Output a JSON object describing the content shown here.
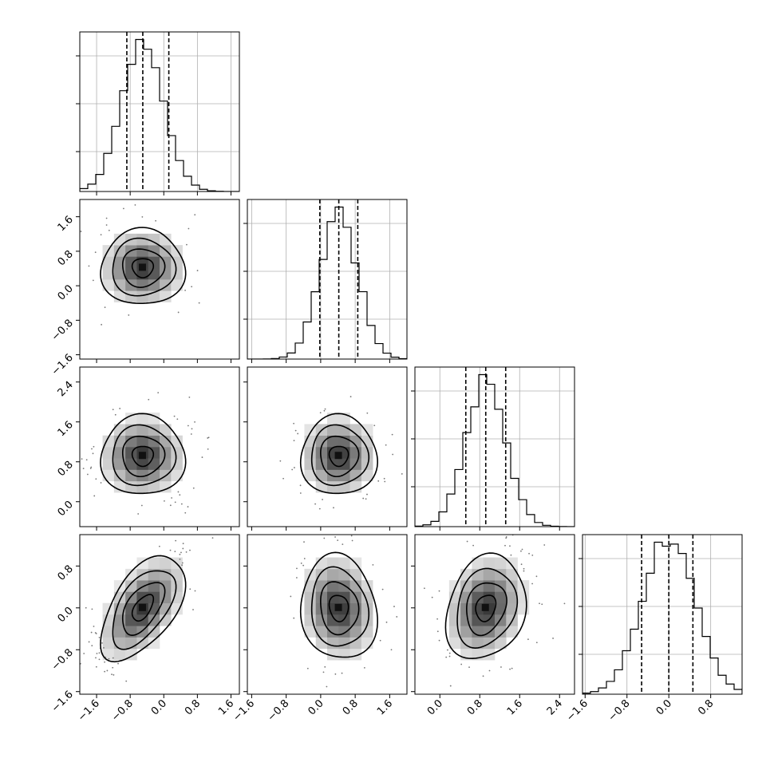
{
  "chart_data": {
    "type": "corner",
    "n_params": 4,
    "params": [
      {
        "index": 0,
        "median": -0.5,
        "q16": -0.88,
        "q84": 0.12,
        "sigma": 0.5,
        "range": [
          -2.0,
          1.8
        ],
        "hist_ticks": [
          "",
          "",
          ""
        ],
        "axis_ticks": [
          -1.6,
          -0.8,
          0.0,
          0.8,
          1.6
        ],
        "axis_tick_labels": [
          "−1.6",
          "−0.8",
          "0.0",
          "0.8",
          "1.6"
        ]
      },
      {
        "index": 1,
        "median": 0.42,
        "q16": -0.02,
        "q84": 0.86,
        "sigma": 0.44,
        "range": [
          -1.7,
          2.0
        ],
        "axis_ticks": [
          -1.6,
          -0.8,
          0.0,
          0.8,
          1.6
        ],
        "axis_tick_labels": [
          "−1.6",
          "−0.8",
          "0.0",
          "0.8",
          "1.6"
        ]
      },
      {
        "index": 2,
        "median": 0.92,
        "q16": 0.52,
        "q84": 1.32,
        "sigma": 0.4,
        "range": [
          -0.5,
          2.7
        ],
        "axis_ticks": [
          0.0,
          0.8,
          1.6,
          2.4
        ],
        "axis_tick_labels": [
          "0.0",
          "0.8",
          "1.6",
          "2.4"
        ]
      },
      {
        "index": 3,
        "median": 0.0,
        "q16": -0.52,
        "q84": 0.46,
        "sigma": 0.5,
        "range": [
          -1.65,
          1.4
        ],
        "axis_ticks": [
          -1.6,
          -0.8,
          0.0,
          0.8
        ],
        "axis_tick_labels": [
          "−1.6",
          "−0.8",
          "0.0",
          "0.8"
        ]
      }
    ],
    "correlations": {
      "0-3": 0.55,
      "1-3": -0.1,
      "2-3": 0.2
    },
    "hist_bins": 20,
    "contour_levels": 4,
    "grid": true,
    "quantiles": [
      0.16,
      0.5,
      0.84
    ]
  }
}
